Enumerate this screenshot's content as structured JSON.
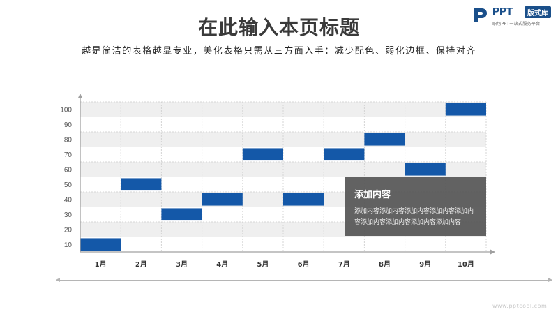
{
  "header": {
    "title": "在此输入本页标题",
    "subtitle": "越是简洁的表格越显专业，美化表格只需从三方面入手：减少配色、弱化边框、保持对齐"
  },
  "logo": {
    "name": "PPT",
    "badge": "版式库",
    "slogan": "职场PPT一站式服务平台",
    "color": "#1a4f8a"
  },
  "note": {
    "title": "添加内容",
    "body": "添加内容添加内容添加内容添加内容添加内容添加内容添加内容添加内容添加内容"
  },
  "watermark": "www.pptcool.com",
  "chart_data": {
    "type": "bar",
    "subtype": "floating-timeline",
    "categories": [
      "1月",
      "2月",
      "3月",
      "4月",
      "5月",
      "6月",
      "7月",
      "8月",
      "9月",
      "10月"
    ],
    "values": [
      10,
      50,
      30,
      40,
      70,
      40,
      70,
      80,
      60,
      100
    ],
    "y_ticks": [
      10,
      20,
      30,
      40,
      50,
      60,
      70,
      80,
      90,
      100
    ],
    "ylim": [
      5,
      105
    ],
    "grid": true,
    "colors": {
      "bar": "#1458a8",
      "band": "#efefef",
      "grid": "#d4d4d4",
      "axis": "#a0a0a0"
    }
  }
}
